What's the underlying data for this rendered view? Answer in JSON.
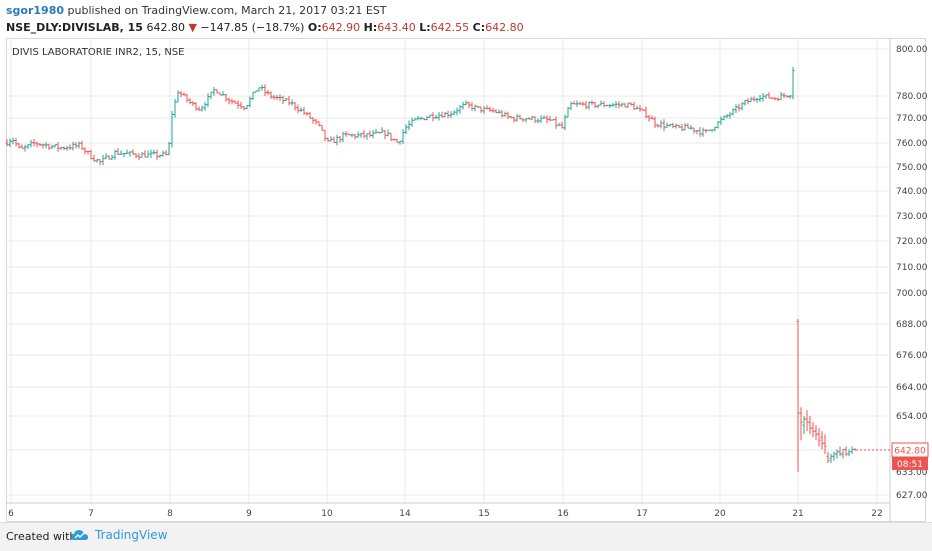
{
  "header": {
    "user": "sgor1980",
    "published": "published on TradingView.com, March 21, 2017 03:21 EST",
    "symbol": "NSE_DLY:DIVISLAB, 15",
    "last": "642.80",
    "change_arrow": "▼",
    "change": "−147.85 (−18.7%)",
    "o_label": "O:",
    "o_value": "642.90",
    "h_label": "H:",
    "h_value": "643.40",
    "l_label": "L:",
    "l_value": "642.55",
    "c_label": "C:",
    "c_value": "642.80"
  },
  "footer": {
    "created_with": "Created with",
    "brand": "TradingView"
  },
  "colors": {
    "up": "#26a69a",
    "down": "#ef5350",
    "grid": "#e8e8e8",
    "price_tag": "#ef5350"
  },
  "chart_data": {
    "type": "ohlc-bar",
    "title": "DIVIS LABORATORIE INR2, 15, NSE",
    "x_ticks": [
      "6",
      "7",
      "8",
      "9",
      "10",
      "14",
      "15",
      "16",
      "17",
      "20",
      "21",
      "22"
    ],
    "y_ticks": [
      "800.00",
      "780.00",
      "770.00",
      "760.00",
      "750.00",
      "740.00",
      "730.00",
      "720.00",
      "710.00",
      "700.00",
      "688.00",
      "676.00",
      "664.00",
      "654.00",
      "642.80",
      "627.00"
    ],
    "y_ticks_obscured": [
      "633.00"
    ],
    "last_price_label": "642.80",
    "countdown_label": "08:51",
    "approx_session_ranges": [
      {
        "day": "6",
        "low": 754,
        "high": 765
      },
      {
        "day": "7",
        "low": 750,
        "high": 760
      },
      {
        "day": "8",
        "low": 773,
        "high": 785
      },
      {
        "day": "9",
        "low": 772,
        "high": 785
      },
      {
        "day": "10",
        "low": 754,
        "high": 764
      },
      {
        "day": "14",
        "low": 760,
        "high": 773
      },
      {
        "day": "15",
        "low": 768,
        "high": 778
      },
      {
        "day": "16",
        "low": 766,
        "high": 779
      },
      {
        "day": "17",
        "low": 763,
        "high": 774
      },
      {
        "day": "20",
        "low": 770,
        "high": 795
      },
      {
        "day": "21",
        "low": 632,
        "high": 690
      }
    ]
  }
}
